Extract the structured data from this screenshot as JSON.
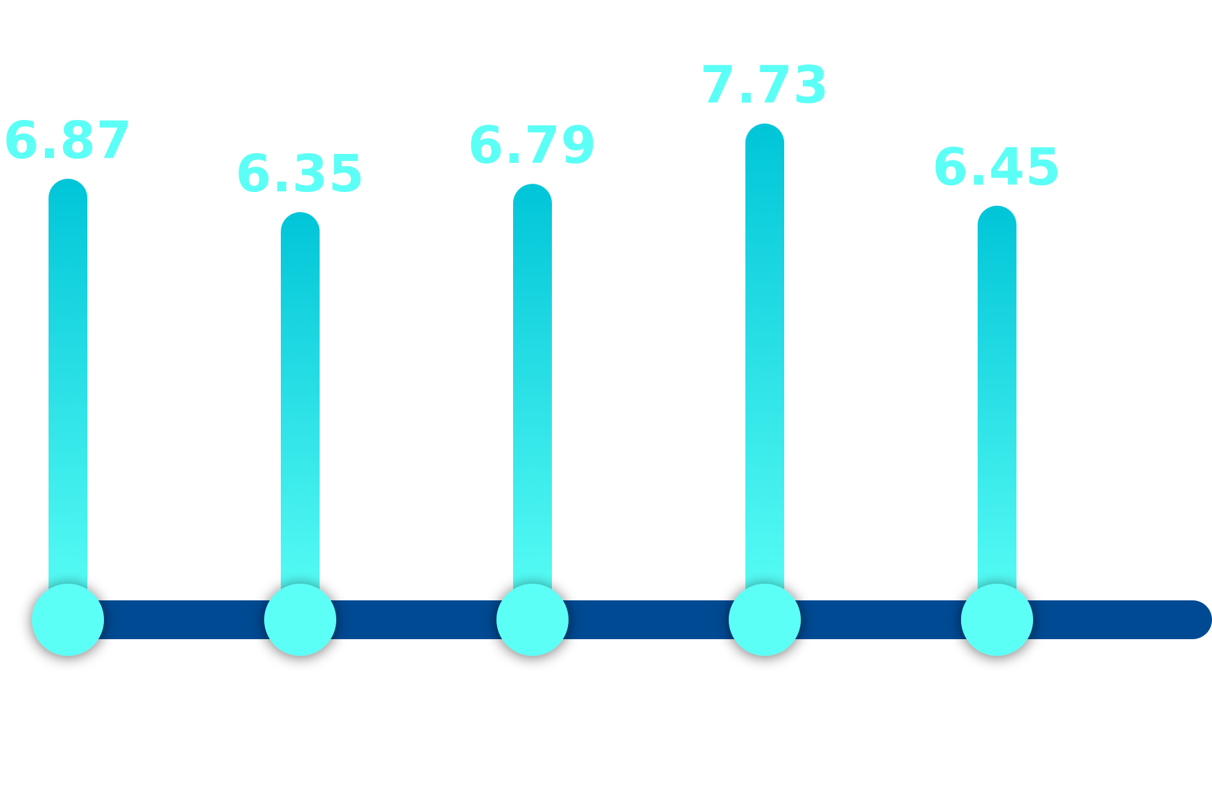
{
  "chart_data": {
    "type": "lollipop",
    "title": "",
    "xlabel": "",
    "ylabel": "",
    "categories": [
      "",
      "",
      "",
      "",
      ""
    ],
    "values": [
      6.87,
      6.35,
      6.79,
      7.73,
      6.45
    ],
    "labels": [
      "6.87",
      "6.35",
      "6.79",
      "7.73",
      "6.45"
    ],
    "ylim": [
      0,
      9.5
    ],
    "grid": false,
    "legend": "none"
  },
  "colors": {
    "stem_top": "#00C5D8",
    "stem_bottom": "#5BFFF6",
    "marker": "#5BFFF6",
    "label": "#5BFFF6",
    "baseline": "#004A93",
    "background": "#FFFFFF"
  }
}
